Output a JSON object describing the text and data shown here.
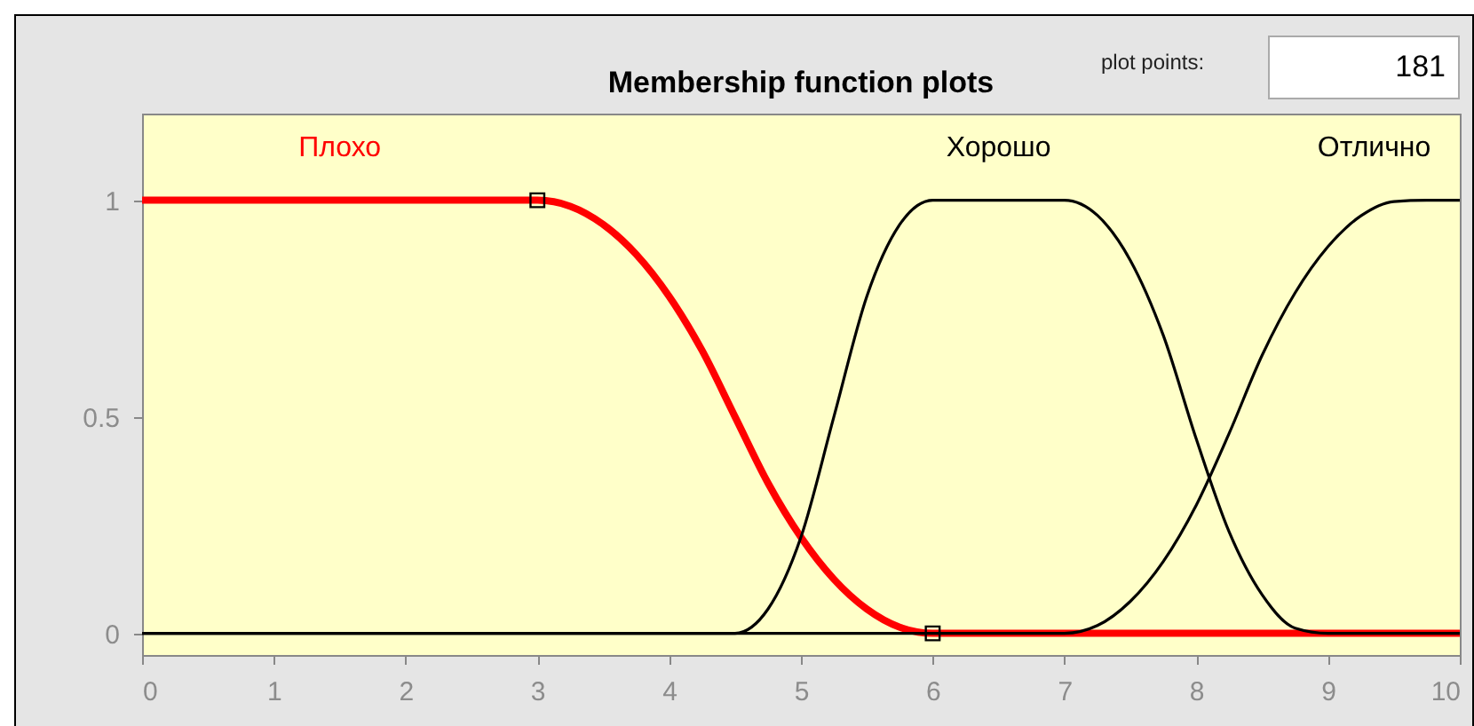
{
  "chart_data": {
    "type": "line",
    "title": "Membership function plots",
    "x": [
      0,
      0.5,
      1,
      1.5,
      2,
      2.5,
      3,
      3.25,
      3.5,
      3.75,
      4,
      4.25,
      4.5,
      4.75,
      5,
      5.25,
      5.5,
      5.75,
      6,
      6.25,
      6.5,
      6.75,
      7,
      7.25,
      7.5,
      7.75,
      8,
      8.25,
      8.5,
      8.75,
      9,
      9.25,
      9.5,
      9.75,
      10
    ],
    "series": [
      {
        "name": "Плохо",
        "color": "#ff0000",
        "values": [
          1,
          1,
          1,
          1,
          1,
          1,
          1,
          0.986,
          0.944,
          0.875,
          0.778,
          0.653,
          0.5,
          0.347,
          0.222,
          0.125,
          0.056,
          0.014,
          0,
          0,
          0,
          0,
          0,
          0,
          0,
          0,
          0,
          0,
          0,
          0,
          0,
          0,
          0,
          0,
          0
        ]
      },
      {
        "name": "Хорошо",
        "color": "#000000",
        "values": [
          0,
          0,
          0,
          0,
          0,
          0,
          0,
          0,
          0,
          0,
          0,
          0,
          0,
          0.056,
          0.222,
          0.5,
          0.778,
          0.944,
          1,
          1,
          1,
          1,
          1,
          0.965,
          0.861,
          0.688,
          0.449,
          0.234,
          0.089,
          0.012,
          0,
          0,
          0,
          0,
          0
        ]
      },
      {
        "name": "Отлично",
        "color": "#000000",
        "values": [
          0,
          0,
          0,
          0,
          0,
          0,
          0,
          0,
          0,
          0,
          0,
          0,
          0,
          0,
          0,
          0,
          0,
          0,
          0,
          0,
          0,
          0,
          0,
          0.018,
          0.074,
          0.166,
          0.296,
          0.462,
          0.642,
          0.786,
          0.893,
          0.964,
          0.997,
          1,
          1
        ]
      },
      {
        "type": "scatter",
        "marker": "square",
        "color": "#000000",
        "x": [
          3,
          6
        ],
        "values": [
          1,
          0
        ]
      }
    ],
    "xlim": [
      0,
      10
    ],
    "xticks": [
      0,
      1,
      2,
      3,
      4,
      5,
      6,
      7,
      8,
      9,
      10
    ],
    "ylim": [
      -0.05,
      1.2
    ],
    "yticks": [
      0,
      0.5,
      1
    ],
    "grid": false,
    "annotations": [
      "plot points:",
      "181"
    ]
  }
}
